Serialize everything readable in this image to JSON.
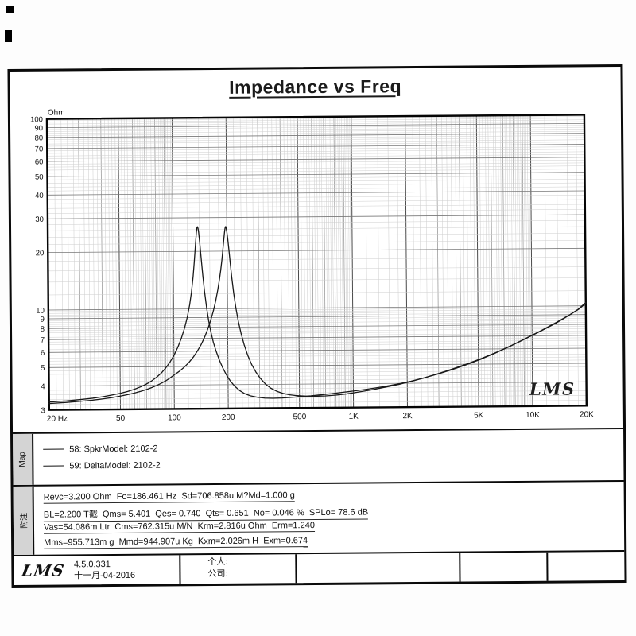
{
  "title": "Impedance vs Freq",
  "chart_data": {
    "type": "line",
    "title": "Impedance vs Freq",
    "x_axis": {
      "label": "Hz",
      "scale": "log",
      "min": 20,
      "max": 20000,
      "tick_values": [
        20,
        50,
        100,
        200,
        500,
        1000,
        2000,
        5000,
        10000,
        20000
      ],
      "tick_labels": [
        "20 Hz",
        "50",
        "100",
        "200",
        "500",
        "1K",
        "2K",
        "5K",
        "10K",
        "20K"
      ]
    },
    "y_axis": {
      "label": "Ohm",
      "scale": "log",
      "min": 3,
      "max": 100,
      "tick_values": [
        3,
        4,
        5,
        6,
        7,
        8,
        9,
        10,
        20,
        30,
        40,
        50,
        60,
        70,
        80,
        90,
        100
      ]
    },
    "grid": "on",
    "watermark": "LMS",
    "series": [
      {
        "name": "58: SpkrModel: 2102-2",
        "points": [
          [
            20,
            3.3
          ],
          [
            25,
            3.34
          ],
          [
            30,
            3.39
          ],
          [
            35,
            3.44
          ],
          [
            40,
            3.5
          ],
          [
            45,
            3.57
          ],
          [
            50,
            3.64
          ],
          [
            55,
            3.72
          ],
          [
            60,
            3.82
          ],
          [
            65,
            3.93
          ],
          [
            70,
            4.06
          ],
          [
            75,
            4.22
          ],
          [
            80,
            4.41
          ],
          [
            85,
            4.64
          ],
          [
            90,
            4.93
          ],
          [
            95,
            5.28
          ],
          [
            100,
            5.72
          ],
          [
            105,
            6.28
          ],
          [
            110,
            7.0
          ],
          [
            115,
            7.95
          ],
          [
            119,
            9.0
          ],
          [
            123,
            10.5
          ],
          [
            126,
            12.2
          ],
          [
            129,
            14.8
          ],
          [
            131,
            17.5
          ],
          [
            133,
            21.0
          ],
          [
            134,
            23.0
          ],
          [
            135,
            25.0
          ],
          [
            136,
            26.5
          ],
          [
            137,
            26.9
          ],
          [
            138,
            26.4
          ],
          [
            139,
            25.2
          ],
          [
            141,
            22.0
          ],
          [
            143,
            18.8
          ],
          [
            146,
            15.0
          ],
          [
            149,
            12.4
          ],
          [
            153,
            10.1
          ],
          [
            157,
            8.6
          ],
          [
            161,
            7.6
          ],
          [
            166,
            6.7
          ],
          [
            172,
            6.0
          ],
          [
            179,
            5.4
          ],
          [
            187,
            4.9
          ],
          [
            196,
            4.5
          ],
          [
            206,
            4.18
          ],
          [
            218,
            3.92
          ],
          [
            232,
            3.72
          ],
          [
            248,
            3.58
          ],
          [
            266,
            3.49
          ],
          [
            290,
            3.43
          ],
          [
            320,
            3.39
          ],
          [
            355,
            3.38
          ],
          [
            400,
            3.39
          ],
          [
            450,
            3.41
          ],
          [
            510,
            3.44
          ],
          [
            580,
            3.47
          ],
          [
            660,
            3.51
          ],
          [
            750,
            3.55
          ],
          [
            850,
            3.6
          ],
          [
            1000,
            3.66
          ],
          [
            1200,
            3.74
          ],
          [
            1450,
            3.84
          ],
          [
            1750,
            3.96
          ],
          [
            2100,
            4.1
          ],
          [
            2500,
            4.27
          ],
          [
            3000,
            4.47
          ],
          [
            3600,
            4.71
          ],
          [
            4300,
            4.98
          ],
          [
            5200,
            5.32
          ],
          [
            6200,
            5.7
          ],
          [
            7500,
            6.17
          ],
          [
            9000,
            6.7
          ],
          [
            11000,
            7.35
          ],
          [
            13500,
            8.1
          ],
          [
            16000,
            8.9
          ],
          [
            18000,
            9.55
          ],
          [
            20000,
            10.4
          ]
        ]
      },
      {
        "name": "59: DeltaModel: 2102-2",
        "points": [
          [
            20,
            3.24
          ],
          [
            25,
            3.28
          ],
          [
            30,
            3.32
          ],
          [
            35,
            3.36
          ],
          [
            40,
            3.41
          ],
          [
            45,
            3.46
          ],
          [
            50,
            3.52
          ],
          [
            55,
            3.58
          ],
          [
            60,
            3.65
          ],
          [
            65,
            3.72
          ],
          [
            70,
            3.8
          ],
          [
            75,
            3.89
          ],
          [
            80,
            3.99
          ],
          [
            85,
            4.1
          ],
          [
            90,
            4.22
          ],
          [
            95,
            4.36
          ],
          [
            100,
            4.52
          ],
          [
            107,
            4.72
          ],
          [
            114,
            4.96
          ],
          [
            121,
            5.24
          ],
          [
            128,
            5.58
          ],
          [
            135,
            6.0
          ],
          [
            142,
            6.5
          ],
          [
            149,
            7.15
          ],
          [
            155,
            7.85
          ],
          [
            161,
            8.7
          ],
          [
            167,
            9.8
          ],
          [
            172,
            11.0
          ],
          [
            177,
            12.6
          ],
          [
            181,
            14.3
          ],
          [
            184,
            15.9
          ],
          [
            187,
            18.0
          ],
          [
            189,
            19.8
          ],
          [
            191,
            21.9
          ],
          [
            193,
            24.1
          ],
          [
            194,
            25.2
          ],
          [
            195,
            26.1
          ],
          [
            196,
            26.8
          ],
          [
            197,
            26.9
          ],
          [
            198,
            26.5
          ],
          [
            200,
            25.1
          ],
          [
            202,
            23.2
          ],
          [
            205,
            20.2
          ],
          [
            208,
            17.4
          ],
          [
            212,
            14.5
          ],
          [
            217,
            12.0
          ],
          [
            223,
            10.0
          ],
          [
            230,
            8.5
          ],
          [
            238,
            7.35
          ],
          [
            247,
            6.45
          ],
          [
            258,
            5.7
          ],
          [
            271,
            5.1
          ],
          [
            286,
            4.65
          ],
          [
            303,
            4.3
          ],
          [
            323,
            4.02
          ],
          [
            346,
            3.82
          ],
          [
            373,
            3.68
          ],
          [
            405,
            3.58
          ],
          [
            441,
            3.52
          ],
          [
            486,
            3.48
          ],
          [
            541,
            3.46
          ],
          [
            610,
            3.45
          ],
          [
            700,
            3.46
          ],
          [
            800,
            3.49
          ],
          [
            920,
            3.54
          ],
          [
            1060,
            3.61
          ],
          [
            1250,
            3.7
          ],
          [
            1500,
            3.82
          ],
          [
            1800,
            3.95
          ],
          [
            2150,
            4.11
          ],
          [
            2550,
            4.29
          ],
          [
            3050,
            4.51
          ],
          [
            3650,
            4.76
          ],
          [
            4400,
            5.05
          ],
          [
            5300,
            5.39
          ],
          [
            6400,
            5.79
          ],
          [
            7700,
            6.26
          ],
          [
            9300,
            6.82
          ],
          [
            11300,
            7.47
          ],
          [
            13700,
            8.22
          ],
          [
            16300,
            9.0
          ],
          [
            18300,
            9.62
          ],
          [
            20000,
            10.3
          ]
        ]
      }
    ]
  },
  "map_section": {
    "label": "Map",
    "legend": [
      {
        "text": "58: SpkrModel: 2102-2"
      },
      {
        "text": "59: DeltaModel: 2102-2"
      }
    ]
  },
  "notes_section": {
    "label": "附注",
    "lines": [
      "Revc=3.200 Ohm  Fo=186.461 Hz  Sd=706.858u M?Md=1.000 g",
      "BL=2.200 T截  Qms= 5.401  Qes= 0.740  Qts= 0.651  No= 0.046 %  SPLo= 78.6 dB",
      "Vas=54.086m Ltr  Cms=762.315u M/N  Krm=2.816u Ohm  Erm=1.240",
      "Mms=955.713m g  Mmd=944.907u Kg  Kxm=2.026m H  Exm=0.674"
    ]
  },
  "footer": {
    "logo": "LMS",
    "version": "4.5.0.331",
    "date": "十一月-04-2016",
    "personal_label": "个人:",
    "company_label": "公司:"
  }
}
